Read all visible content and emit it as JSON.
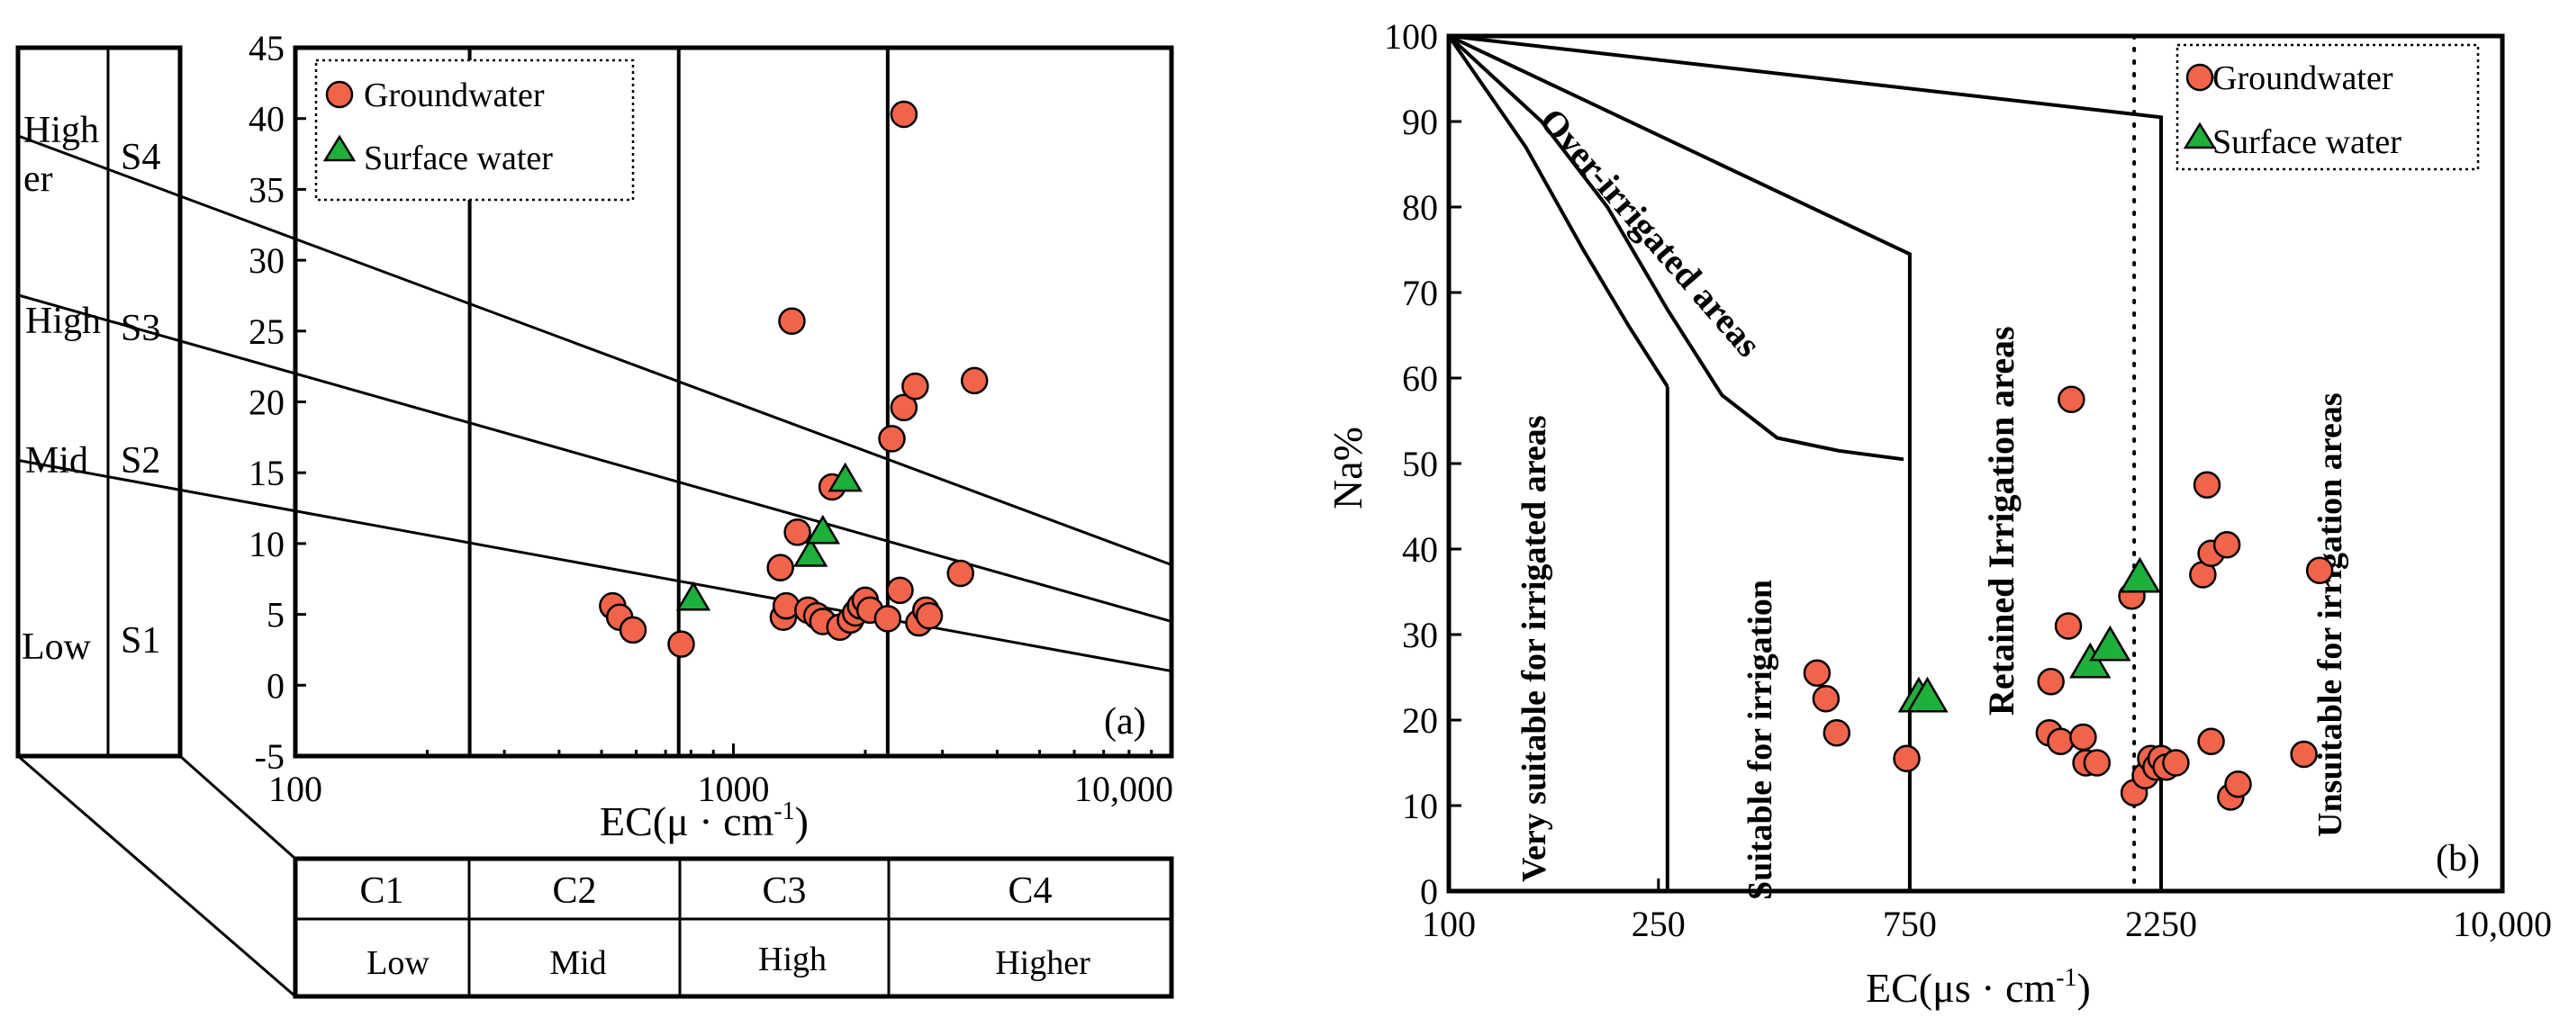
{
  "chart_data": [
    {
      "id": "a",
      "type": "scatter",
      "panel_label": "(a)",
      "xlabel": "EC(μ · cm",
      "xlabel_sup": "-1",
      "ylabel": "",
      "x_scale": "log",
      "xlim": [
        100,
        10000
      ],
      "ylim": [
        -5,
        45
      ],
      "x_ticks": [
        {
          "value": 100,
          "label": "100"
        },
        {
          "value": 1000,
          "label": "1000"
        },
        {
          "value": 10000,
          "label": "10,000"
        }
      ],
      "y_ticks": [
        -5,
        0,
        5,
        10,
        15,
        20,
        25,
        30,
        35,
        40,
        45
      ],
      "legend": {
        "position": "top-left",
        "entries": [
          "Groundwater",
          "Surface water"
        ]
      },
      "left_labels": [
        {
          "range": "Higher",
          "class": "S4"
        },
        {
          "range": "High",
          "class": "S3"
        },
        {
          "range": "Mid",
          "class": "S2"
        },
        {
          "range": "Low",
          "class": "S1"
        }
      ],
      "bottom_table": {
        "classes": [
          "C1",
          "C2",
          "C3",
          "C4"
        ],
        "ranges": [
          "Low",
          "Mid",
          "High",
          "Higher"
        ],
        "boundaries": [
          250,
          750,
          2250
        ]
      },
      "class_lines": [
        {
          "x1": 100,
          "y1": 31.5,
          "x2": 10000,
          "y2": 8.5
        },
        {
          "x1": 100,
          "y1": 22,
          "x2": 10000,
          "y2": 4.5
        },
        {
          "x1": 100,
          "y1": 12.3,
          "x2": 10000,
          "y2": 1
        }
      ],
      "series": [
        {
          "name": "Groundwater",
          "points": [
            [
              530,
              5.6
            ],
            [
              550,
              4.8
            ],
            [
              590,
              3.9
            ],
            [
              760,
              2.9
            ],
            [
              1280,
              8.3
            ],
            [
              1300,
              4.8
            ],
            [
              1320,
              5.6
            ],
            [
              1360,
              25.7
            ],
            [
              1400,
              10.8
            ],
            [
              1480,
              5.3
            ],
            [
              1550,
              4.9
            ],
            [
              1600,
              4.5
            ],
            [
              1680,
              14.0
            ],
            [
              1750,
              4.1
            ],
            [
              1850,
              4.6
            ],
            [
              1900,
              5.1
            ],
            [
              1950,
              5.6
            ],
            [
              2000,
              6.0
            ],
            [
              2050,
              5.3
            ],
            [
              2250,
              4.7
            ],
            [
              2300,
              17.4
            ],
            [
              2400,
              6.7
            ],
            [
              2450,
              40.3
            ],
            [
              2450,
              19.6
            ],
            [
              2600,
              21.1
            ],
            [
              2650,
              4.4
            ],
            [
              2750,
              5.3
            ],
            [
              2800,
              4.9
            ],
            [
              3300,
              7.9
            ],
            [
              3550,
              21.5
            ]
          ]
        },
        {
          "name": "Surface water",
          "points": [
            [
              810,
              6.1
            ],
            [
              1500,
              9.2
            ],
            [
              1600,
              10.8
            ],
            [
              1800,
              14.5
            ]
          ]
        }
      ]
    },
    {
      "id": "b",
      "type": "scatter",
      "panel_label": "(b)",
      "xlabel": "EC(μs · cm",
      "xlabel_sup": "-1",
      "ylabel": "Na%",
      "x_scale": "log",
      "xlim": [
        100,
        10000
      ],
      "ylim": [
        0,
        100
      ],
      "x_ticks": [
        {
          "value": 100,
          "label": "100"
        },
        {
          "value": 250,
          "label": "250"
        },
        {
          "value": 750,
          "label": "750"
        },
        {
          "value": 2250,
          "label": "2250"
        },
        {
          "value": 10000,
          "label": "10,000"
        }
      ],
      "y_ticks": [
        0,
        10,
        20,
        30,
        40,
        50,
        60,
        70,
        80,
        90,
        100
      ],
      "legend": {
        "position": "top-right",
        "entries": [
          "Groundwater",
          "Surface water"
        ]
      },
      "regions": [
        "Very suitable for irrigated areas",
        "Suitable for irrigation",
        "Over-irrigated areas",
        "Retained Irrigation areas",
        "Unsuitable for irrigation areas"
      ],
      "dotted_line_x": 2000,
      "series": [
        {
          "name": "Groundwater",
          "points": [
            [
              500,
              25.5
            ],
            [
              520,
              22.5
            ],
            [
              545,
              18.5
            ],
            [
              740,
              15.5
            ],
            [
              1380,
              18.5
            ],
            [
              1390,
              24.5
            ],
            [
              1450,
              17.5
            ],
            [
              1500,
              31.0
            ],
            [
              1520,
              57.5
            ],
            [
              1600,
              18.0
            ],
            [
              1620,
              15.0
            ],
            [
              1700,
              15.0
            ],
            [
              1980,
              34.5
            ],
            [
              2000,
              11.5
            ],
            [
              2100,
              13.5
            ],
            [
              2150,
              15.5
            ],
            [
              2200,
              14.5
            ],
            [
              2250,
              15.5
            ],
            [
              2300,
              14.5
            ],
            [
              2400,
              15.0
            ],
            [
              2700,
              37.0
            ],
            [
              2750,
              47.5
            ],
            [
              2800,
              17.5
            ],
            [
              2800,
              39.5
            ],
            [
              3000,
              40.5
            ],
            [
              3050,
              11.0
            ],
            [
              3150,
              12.5
            ],
            [
              4200,
              16.0
            ],
            [
              4500,
              37.5
            ]
          ]
        },
        {
          "name": "Surface water",
          "points": [
            [
              780,
              22.5
            ],
            [
              810,
              22.5
            ],
            [
              1650,
              26.5
            ],
            [
              1800,
              28.5
            ],
            [
              2050,
              36.5
            ]
          ]
        }
      ]
    }
  ]
}
